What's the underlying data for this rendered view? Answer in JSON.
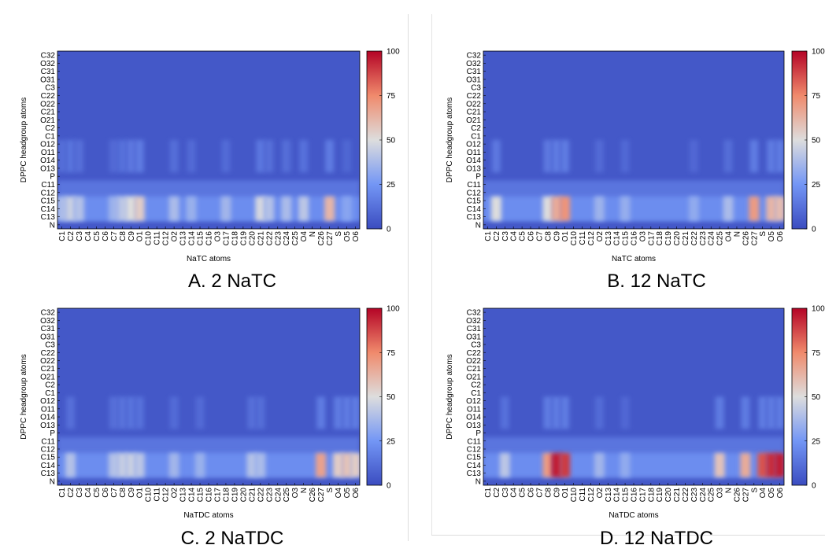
{
  "chart_data": [
    {
      "type": "heatmap",
      "title": "A.  2 NaTC",
      "xlabel": "NaTC atoms",
      "ylabel": "DPPC headgroup atoms",
      "x_categories": [
        "C1",
        "C2",
        "C3",
        "C4",
        "C5",
        "C6",
        "C7",
        "C8",
        "C9",
        "O1",
        "C10",
        "C11",
        "C12",
        "O2",
        "C13",
        "C14",
        "C15",
        "C16",
        "O3",
        "C17",
        "C18",
        "C19",
        "C20",
        "C21",
        "C22",
        "C23",
        "C24",
        "C25",
        "O4",
        "N",
        "C26",
        "C27",
        "S",
        "O5",
        "O6"
      ],
      "y_categories": [
        "C32",
        "O32",
        "C31",
        "O31",
        "C3",
        "C22",
        "O22",
        "C21",
        "O21",
        "C2",
        "C1",
        "O12",
        "O11",
        "O14",
        "O13",
        "P",
        "C11",
        "C12",
        "C15",
        "C14",
        "C13",
        "N"
      ],
      "colorbar": {
        "min": 0,
        "max": 100,
        "ticks": [
          0,
          25,
          50,
          75,
          100
        ]
      },
      "hotspots": [
        {
          "x": "C1",
          "y_from": "C15",
          "y_to": "C13",
          "value": 38
        },
        {
          "x": "C2",
          "y_from": "C15",
          "y_to": "C13",
          "value": 45
        },
        {
          "x": "C3",
          "y_from": "C15",
          "y_to": "C13",
          "value": 40
        },
        {
          "x": "C7",
          "y_from": "C15",
          "y_to": "C13",
          "value": 35
        },
        {
          "x": "C8",
          "y_from": "C15",
          "y_to": "C13",
          "value": 42
        },
        {
          "x": "C9",
          "y_from": "C15",
          "y_to": "C13",
          "value": 50
        },
        {
          "x": "O1",
          "y_from": "C15",
          "y_to": "C13",
          "value": 55
        },
        {
          "x": "O2",
          "y_from": "C15",
          "y_to": "C13",
          "value": 38
        },
        {
          "x": "C14",
          "y_from": "C15",
          "y_to": "C13",
          "value": 34
        },
        {
          "x": "C17",
          "y_from": "C15",
          "y_to": "C13",
          "value": 36
        },
        {
          "x": "C21",
          "y_from": "C15",
          "y_to": "C13",
          "value": 48
        },
        {
          "x": "C22",
          "y_from": "C15",
          "y_to": "C13",
          "value": 40
        },
        {
          "x": "C24",
          "y_from": "C15",
          "y_to": "C13",
          "value": 38
        },
        {
          "x": "O4",
          "y_from": "C15",
          "y_to": "C13",
          "value": 42
        },
        {
          "x": "C27",
          "y_from": "C15",
          "y_to": "C13",
          "value": 62
        },
        {
          "x": "O5",
          "y_from": "C15",
          "y_to": "C13",
          "value": 30
        }
      ]
    },
    {
      "type": "heatmap",
      "title": "B.  12 NaTC",
      "xlabel": "NaTC atoms",
      "ylabel": "DPPC headgroup atoms",
      "x_categories": [
        "C1",
        "C2",
        "C3",
        "C4",
        "C5",
        "C6",
        "C7",
        "C8",
        "C9",
        "O1",
        "C10",
        "C11",
        "C12",
        "O2",
        "C13",
        "C14",
        "C15",
        "C16",
        "O3",
        "C17",
        "C18",
        "C19",
        "C20",
        "C21",
        "C22",
        "C23",
        "C24",
        "C25",
        "O4",
        "N",
        "C26",
        "C27",
        "S",
        "O5",
        "O6"
      ],
      "y_categories": [
        "C32",
        "O32",
        "C31",
        "O31",
        "C3",
        "C22",
        "O22",
        "C21",
        "O21",
        "C2",
        "C1",
        "O12",
        "O11",
        "O14",
        "O13",
        "P",
        "C11",
        "C12",
        "C15",
        "C14",
        "C13",
        "N"
      ],
      "colorbar": {
        "min": 0,
        "max": 100,
        "ticks": [
          0,
          25,
          50,
          75,
          100
        ]
      },
      "hotspots": [
        {
          "x": "C2",
          "y_from": "C15",
          "y_to": "C13",
          "value": 50
        },
        {
          "x": "C8",
          "y_from": "C15",
          "y_to": "C13",
          "value": 50
        },
        {
          "x": "C9",
          "y_from": "C15",
          "y_to": "C13",
          "value": 65
        },
        {
          "x": "O1",
          "y_from": "C15",
          "y_to": "C13",
          "value": 72
        },
        {
          "x": "O2",
          "y_from": "C15",
          "y_to": "C13",
          "value": 35
        },
        {
          "x": "C15",
          "y_from": "C15",
          "y_to": "C13",
          "value": 33
        },
        {
          "x": "C22",
          "y_from": "C15",
          "y_to": "C13",
          "value": 32
        },
        {
          "x": "O4",
          "y_from": "C15",
          "y_to": "C13",
          "value": 38
        },
        {
          "x": "C27",
          "y_from": "C15",
          "y_to": "C13",
          "value": 70
        },
        {
          "x": "O5",
          "y_from": "C15",
          "y_to": "C13",
          "value": 62
        },
        {
          "x": "O6",
          "y_from": "C15",
          "y_to": "C13",
          "value": 60
        }
      ]
    },
    {
      "type": "heatmap",
      "title": "C.  2 NaTDC",
      "xlabel": "NaTDC atoms",
      "ylabel": "DPPC headgroup atoms",
      "x_categories": [
        "C1",
        "C2",
        "C3",
        "C4",
        "C5",
        "C6",
        "C7",
        "C8",
        "C9",
        "O1",
        "C10",
        "C11",
        "C12",
        "O2",
        "C13",
        "C14",
        "C15",
        "C16",
        "C17",
        "C18",
        "C19",
        "C20",
        "C21",
        "C22",
        "C23",
        "C24",
        "C25",
        "O3",
        "N",
        "C26",
        "C27",
        "S",
        "O4",
        "O5",
        "O6"
      ],
      "y_categories": [
        "C32",
        "O32",
        "C31",
        "O31",
        "C3",
        "C22",
        "O22",
        "C21",
        "O21",
        "C2",
        "C1",
        "O12",
        "O11",
        "O14",
        "O13",
        "P",
        "C11",
        "C12",
        "C15",
        "C14",
        "C13",
        "N"
      ],
      "colorbar": {
        "min": 0,
        "max": 100,
        "ticks": [
          0,
          25,
          50,
          75,
          100
        ]
      },
      "hotspots": [
        {
          "x": "C2",
          "y_from": "C15",
          "y_to": "C13",
          "value": 40
        },
        {
          "x": "C7",
          "y_from": "C15",
          "y_to": "C13",
          "value": 40
        },
        {
          "x": "C8",
          "y_from": "C15",
          "y_to": "C13",
          "value": 44
        },
        {
          "x": "C9",
          "y_from": "C15",
          "y_to": "C13",
          "value": 45
        },
        {
          "x": "O1",
          "y_from": "C15",
          "y_to": "C13",
          "value": 42
        },
        {
          "x": "O2",
          "y_from": "C15",
          "y_to": "C13",
          "value": 36
        },
        {
          "x": "C15",
          "y_from": "C15",
          "y_to": "C13",
          "value": 34
        },
        {
          "x": "C21",
          "y_from": "C15",
          "y_to": "C13",
          "value": 40
        },
        {
          "x": "C22",
          "y_from": "C15",
          "y_to": "C13",
          "value": 38
        },
        {
          "x": "C27",
          "y_from": "C15",
          "y_to": "C13",
          "value": 68
        },
        {
          "x": "O4",
          "y_from": "C15",
          "y_to": "C13",
          "value": 55
        },
        {
          "x": "O5",
          "y_from": "C15",
          "y_to": "C13",
          "value": 58
        },
        {
          "x": "O6",
          "y_from": "C15",
          "y_to": "C13",
          "value": 55
        }
      ]
    },
    {
      "type": "heatmap",
      "title": "D.  12 NaTDC",
      "xlabel": "NaTDC atoms",
      "ylabel": "DPPC headgroup atoms",
      "x_categories": [
        "C1",
        "C2",
        "C3",
        "C4",
        "C5",
        "C6",
        "C7",
        "C8",
        "C9",
        "O1",
        "C10",
        "C11",
        "C12",
        "O2",
        "C13",
        "C14",
        "C15",
        "C16",
        "C17",
        "C18",
        "C19",
        "C20",
        "C21",
        "C22",
        "C23",
        "C24",
        "C25",
        "O3",
        "N",
        "C26",
        "C27",
        "S",
        "O4",
        "O5",
        "O6"
      ],
      "y_categories": [
        "C32",
        "O32",
        "C31",
        "O31",
        "C3",
        "C22",
        "O22",
        "C21",
        "O21",
        "C2",
        "C1",
        "O12",
        "O11",
        "O14",
        "O13",
        "P",
        "C11",
        "C12",
        "C15",
        "C14",
        "C13",
        "N"
      ],
      "colorbar": {
        "min": 0,
        "max": 100,
        "ticks": [
          0,
          25,
          50,
          75,
          100
        ]
      },
      "hotspots": [
        {
          "x": "C3",
          "y_from": "C15",
          "y_to": "C13",
          "value": 42
        },
        {
          "x": "C8",
          "y_from": "C15",
          "y_to": "C13",
          "value": 70
        },
        {
          "x": "C9",
          "y_from": "C15",
          "y_to": "C13",
          "value": 95
        },
        {
          "x": "O1",
          "y_from": "C15",
          "y_to": "C13",
          "value": 90
        },
        {
          "x": "O2",
          "y_from": "C15",
          "y_to": "C13",
          "value": 36
        },
        {
          "x": "C15",
          "y_from": "C15",
          "y_to": "C13",
          "value": 32
        },
        {
          "x": "O3",
          "y_from": "C15",
          "y_to": "C13",
          "value": 58
        },
        {
          "x": "C27",
          "y_from": "C15",
          "y_to": "C13",
          "value": 65
        },
        {
          "x": "O4",
          "y_from": "C15",
          "y_to": "C13",
          "value": 85
        },
        {
          "x": "O5",
          "y_from": "C15",
          "y_to": "C13",
          "value": 92
        },
        {
          "x": "O6",
          "y_from": "C15",
          "y_to": "C13",
          "value": 95
        }
      ]
    }
  ]
}
